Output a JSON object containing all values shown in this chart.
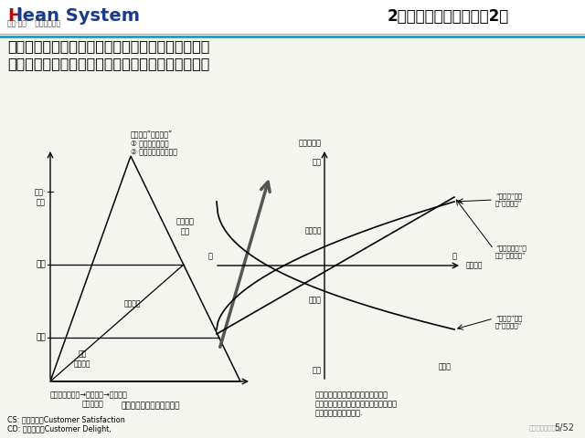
{
  "bg_color": "#f5f5f0",
  "header_bg": "#ffffff",
  "title_right": "2、自工序完结的定位（2）",
  "logo_h": "H",
  "logo_rest": "lean System",
  "logo_sub": "幸福·精益    高效企业系统",
  "main_line1": "自工序完结是质量管理的基础，但非全部。而随着时",
  "main_line2": "代的发展，顾客对自工序完结水平的要求也在提高。",
  "tri_note0": "彻底追求“质量第一”",
  "tri_note1": "① 赋予喜悦、感动",
  "tri_note2": "② 不能给顾客一丝不满",
  "lbl_charming": "有魅力的\n质量",
  "lbl_complaint": "抚怨\n质量故障",
  "lbl_latent": "潜在抚怨",
  "lbl_bot1": "理所当然的质量→ＣＳ质量→ＣＤ质量",
  "lbl_bot2": "自工序完结",
  "lbl_xlabel": "品质向上（提升魅力质量）",
  "lbl_yxi": "喜悦·\n感动",
  "lbl_yman": "满意",
  "lbl_ybu": "不满",
  "rgt_title": "顾客满意度",
  "rgt_xi": "喜悦",
  "rgt_jiaowei": "较为满意",
  "rgt_buman": "不满意",
  "rgt_shiwang": "失望",
  "rgt_cha": "差",
  "rgt_hao": "好",
  "rgt_zhixing": "执行程度",
  "rgt_excite": "“兴奋的”需求\n或“魅力因素”",
  "rgt_perf": "“性能方面的”需\n求或“期望因素”",
  "rgt_basic": "“基本的”需求\n或“必须因素”",
  "rgt_bot_buman": "不满意",
  "rgt_bot1": "顾客的要求经常处于变化中而且具有",
  "rgt_bot2": "偏差性，所以质量管理的目标，不能仅仅",
  "rgt_bot3": "停留在顾客满意的层次.",
  "footer1": "CS: 顾客满意，Customer Satisfaction",
  "footer2": "CD: 顾客感动，Customer Delight,",
  "watermark": "精益生产促进中心",
  "page_num": "5/52"
}
